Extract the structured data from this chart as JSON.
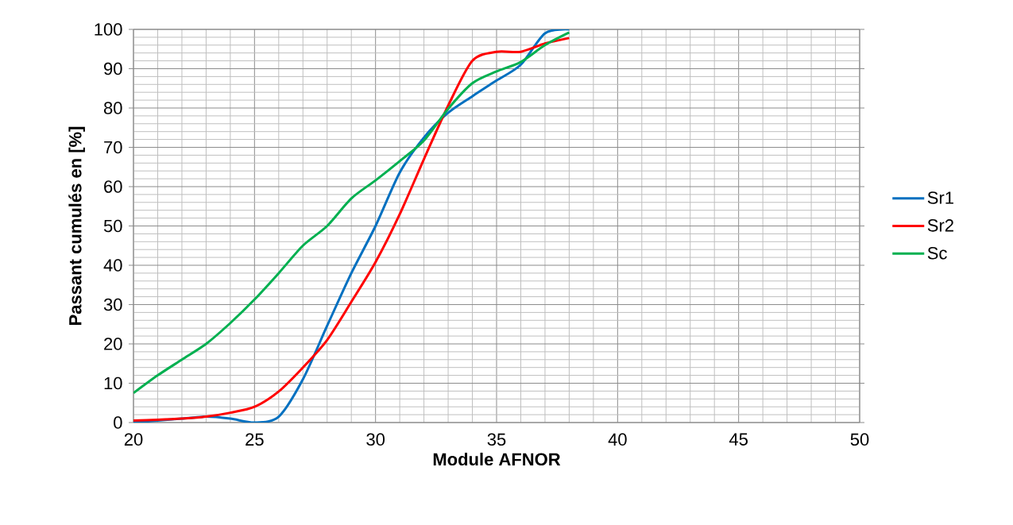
{
  "chart_data": {
    "type": "line",
    "xlabel": "Module AFNOR",
    "ylabel": "Passant cumulés en [%]",
    "xlim": [
      20,
      50
    ],
    "ylim": [
      0,
      100
    ],
    "xticks": [
      20,
      25,
      30,
      35,
      40,
      45,
      50
    ],
    "yticks": [
      0,
      10,
      20,
      30,
      40,
      50,
      60,
      70,
      80,
      90,
      100
    ],
    "grid": true,
    "legend": "right",
    "marker": "none",
    "line_style": "solid",
    "x": [
      20,
      21,
      22,
      23,
      24,
      25,
      26,
      27,
      28,
      29,
      30,
      31,
      32,
      33,
      34,
      35,
      36,
      37,
      38
    ],
    "series": [
      {
        "name": "Sr1",
        "color": "#0070c0",
        "values": [
          0,
          0.5,
          1,
          1.5,
          1,
          0,
          1.5,
          11,
          24.6,
          38,
          50,
          63.6,
          72.5,
          78.8,
          83,
          87,
          91,
          99,
          100
        ]
      },
      {
        "name": "Sr2",
        "color": "#ff0000",
        "values": [
          0.5,
          0.7,
          1,
          1.5,
          2.5,
          4,
          7.9,
          14,
          21,
          30.7,
          40.8,
          53,
          67,
          80.6,
          92,
          94.3,
          94.3,
          96.4,
          97.8
        ]
      },
      {
        "name": "Sc",
        "color": "#00b050",
        "values": [
          7.5,
          12,
          16,
          20,
          25.3,
          31.3,
          38,
          45,
          50,
          57,
          61.6,
          66.5,
          71.7,
          79.8,
          86.3,
          89.3,
          91.7,
          96,
          99.2
        ]
      }
    ]
  }
}
